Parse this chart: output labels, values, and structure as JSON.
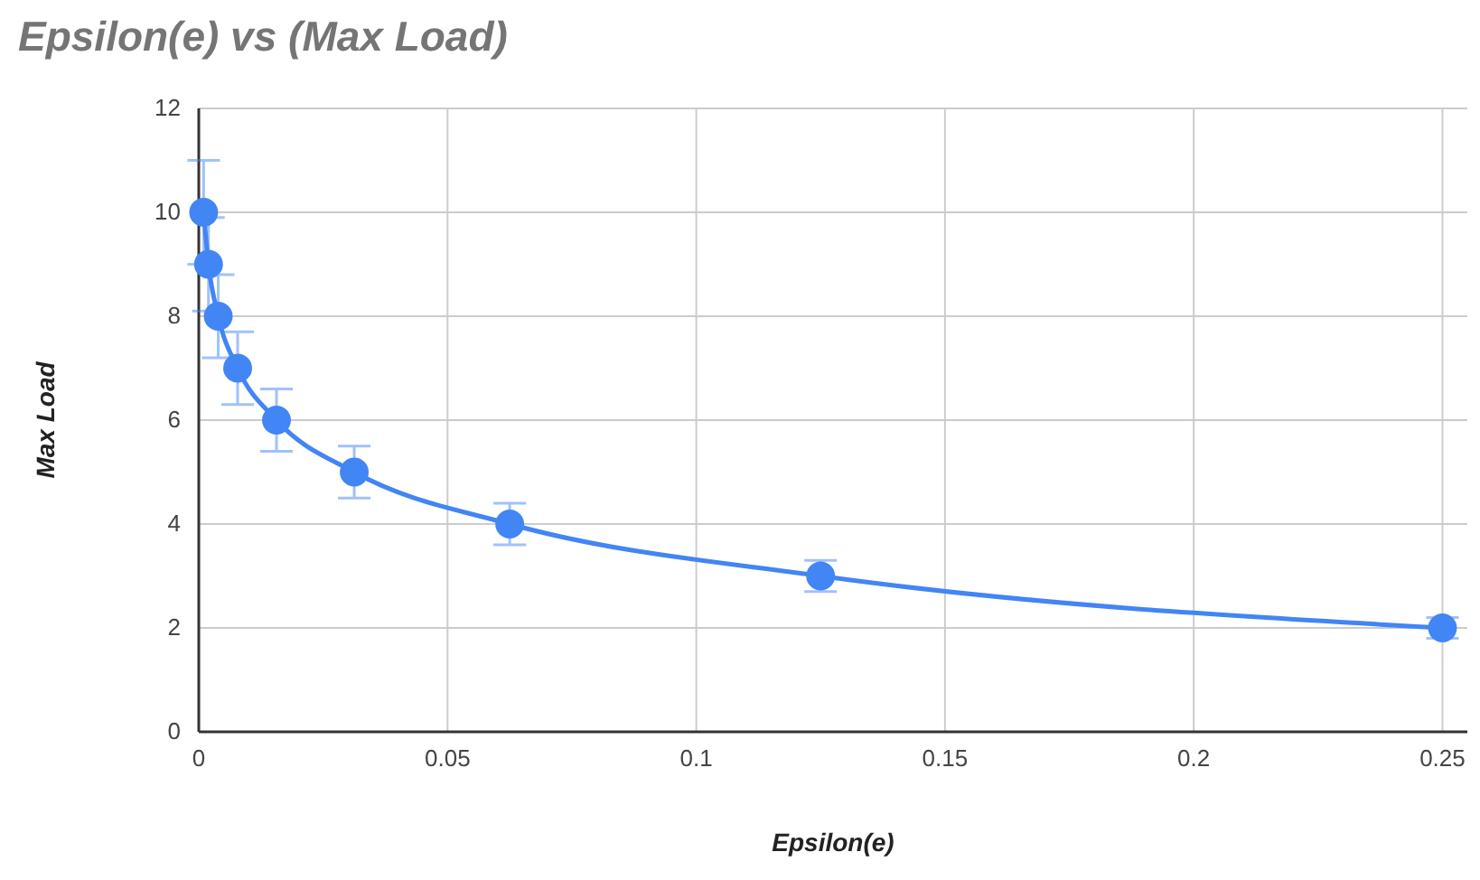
{
  "chart_data": {
    "type": "line",
    "title": "Epsilon(e) vs (Max Load)",
    "xlabel": "Epsilon(e)",
    "ylabel": "Max Load",
    "x": [
      0.0009765625,
      0.001953125,
      0.00390625,
      0.0078125,
      0.015625,
      0.03125,
      0.0625,
      0.125,
      0.25
    ],
    "series": [
      {
        "color": "#4285f4",
        "values": [
          10,
          9,
          8,
          7,
          6,
          5,
          4,
          3,
          2
        ],
        "errors": [
          1,
          0.9,
          0.8,
          0.7,
          0.6,
          0.5,
          0.4,
          0.3,
          0.2
        ]
      }
    ],
    "xlim": [
      0,
      0.255
    ],
    "xticks": [
      0,
      0.05,
      0.1,
      0.15,
      0.2,
      0.25
    ],
    "ylim": [
      0,
      12
    ],
    "yticks": [
      0,
      2,
      4,
      6,
      8,
      10,
      12
    ],
    "grid": true,
    "marker": "circle",
    "line_style": "solid"
  }
}
